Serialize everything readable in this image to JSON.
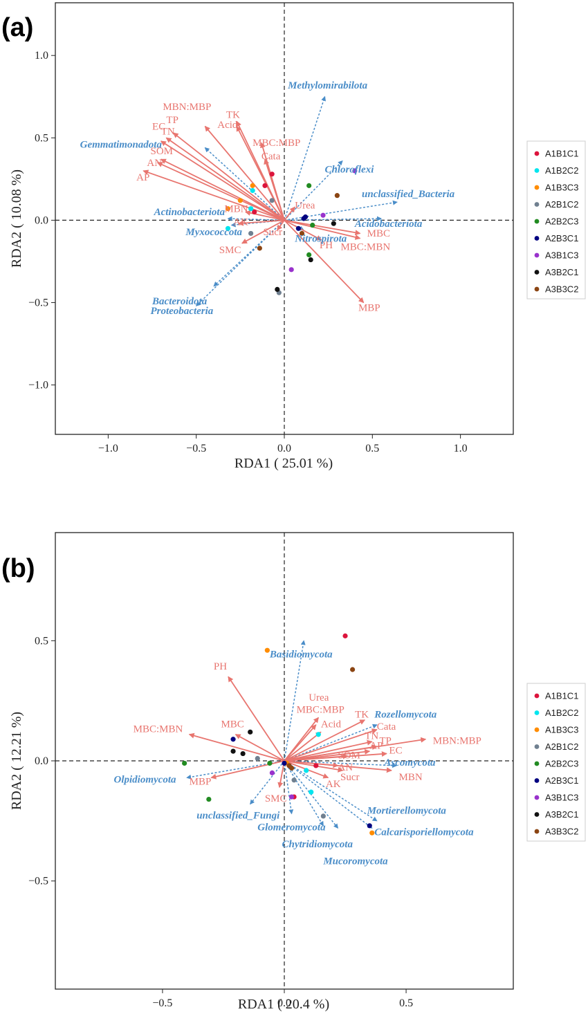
{
  "colors": {
    "env": "#e8756f",
    "taxa": "#4a8dc8",
    "axis": "#222222"
  },
  "chart_data": [
    {
      "panel": "(a)",
      "type": "scatter",
      "xlabel": "RDA1 ( 25.01 %)",
      "ylabel": "RDA2 ( 10.08 %)",
      "xlim": [
        -1.3,
        1.3
      ],
      "ylim": [
        -1.3,
        1.32
      ],
      "xticks": [
        -1.0,
        -0.5,
        0.0,
        0.5,
        1.0
      ],
      "xtick_labels": [
        "−1.0",
        "−0.5",
        "0.0",
        "0.5",
        "1.0"
      ],
      "yticks": [
        1.0,
        0.5,
        0.0,
        -0.5,
        -1.0
      ],
      "ytick_labels": [
        "1.0",
        "0.5",
        "0.0",
        "−0.5",
        "−1.0"
      ],
      "env_arrows": [
        {
          "name": "MBN:MBP",
          "x": -0.45,
          "y": 0.57,
          "lx": -0.69,
          "ly": 0.67
        },
        {
          "name": "TP",
          "x": -0.63,
          "y": 0.53,
          "lx": -0.67,
          "ly": 0.59
        },
        {
          "name": "EC",
          "x": -0.7,
          "y": 0.48,
          "lx": -0.75,
          "ly": 0.55
        },
        {
          "name": "TN",
          "x": -0.67,
          "y": 0.5,
          "lx": -0.7,
          "ly": 0.52
        },
        {
          "name": "Acid",
          "x": -0.27,
          "y": 0.57,
          "lx": -0.38,
          "ly": 0.56
        },
        {
          "name": "TK",
          "x": -0.27,
          "y": 0.6,
          "lx": -0.33,
          "ly": 0.62
        },
        {
          "name": "MBC:MBP",
          "x": -0.13,
          "y": 0.47,
          "lx": -0.18,
          "ly": 0.45
        },
        {
          "name": "Cata",
          "x": -0.11,
          "y": 0.37,
          "lx": -0.13,
          "ly": 0.37
        },
        {
          "name": "SOM",
          "x": -0.7,
          "y": 0.37,
          "lx": -0.76,
          "ly": 0.4
        },
        {
          "name": "AN",
          "x": -0.72,
          "y": 0.35,
          "lx": -0.78,
          "ly": 0.33
        },
        {
          "name": "AP",
          "x": -0.8,
          "y": 0.3,
          "lx": -0.84,
          "ly": 0.24
        },
        {
          "name": "MBN",
          "x": -0.22,
          "y": 0.05,
          "lx": -0.34,
          "ly": 0.05
        },
        {
          "name": "AK",
          "x": -0.26,
          "y": -0.02,
          "lx": -0.29,
          "ly": -0.03
        },
        {
          "name": "Urea",
          "x": 0.06,
          "y": 0.08,
          "lx": 0.06,
          "ly": 0.07
        },
        {
          "name": "Sucr",
          "x": -0.04,
          "y": -0.06,
          "lx": -0.12,
          "ly": -0.09
        },
        {
          "name": "SMC",
          "x": -0.24,
          "y": -0.14,
          "lx": -0.37,
          "ly": -0.2
        },
        {
          "name": "PH",
          "x": 0.21,
          "y": -0.12,
          "lx": 0.2,
          "ly": -0.17
        },
        {
          "name": "MBC",
          "x": 0.43,
          "y": -0.08,
          "lx": 0.47,
          "ly": -0.1
        },
        {
          "name": "MBC:MBN",
          "x": 0.43,
          "y": -0.11,
          "lx": 0.32,
          "ly": -0.18
        },
        {
          "name": "MBP",
          "x": 0.45,
          "y": -0.5,
          "lx": 0.42,
          "ly": -0.55
        }
      ],
      "taxa_arrows": [
        {
          "name": "Methylomirabilota",
          "x": 0.23,
          "y": 0.75,
          "lx": 0.02,
          "ly": 0.8
        },
        {
          "name": "Gemmatimonadota",
          "x": -0.45,
          "y": 0.44,
          "lx": -1.16,
          "ly": 0.44
        },
        {
          "name": "Chloroflexi",
          "x": 0.33,
          "y": 0.36,
          "lx": 0.23,
          "ly": 0.29
        },
        {
          "name": "unclassified_Bacteria",
          "x": 0.64,
          "y": 0.11,
          "lx": 0.44,
          "ly": 0.14
        },
        {
          "name": "Actinobacteriota",
          "x": -0.32,
          "y": 0.01,
          "lx": -0.74,
          "ly": 0.03
        },
        {
          "name": "Acidobacteriota",
          "x": 0.55,
          "y": 0.01,
          "lx": 0.4,
          "ly": -0.04
        },
        {
          "name": "Myxococcota",
          "x": -0.3,
          "y": -0.03,
          "lx": -0.56,
          "ly": -0.09
        },
        {
          "name": "Nitrospirota",
          "x": 0.11,
          "y": -0.06,
          "lx": 0.06,
          "ly": -0.13
        },
        {
          "name": "Bacteroidota",
          "x": -0.4,
          "y": -0.4,
          "lx": -0.75,
          "ly": -0.51
        },
        {
          "name": "Proteobacteria",
          "x": -0.5,
          "y": -0.52,
          "lx": -0.76,
          "ly": -0.57
        }
      ],
      "points": [
        {
          "group": "A1B1C1",
          "x": -0.11,
          "y": 0.21
        },
        {
          "group": "A1B1C1",
          "x": -0.07,
          "y": 0.28
        },
        {
          "group": "A1B1C1",
          "x": -0.17,
          "y": 0.05
        },
        {
          "group": "A1B2C2",
          "x": -0.18,
          "y": 0.18
        },
        {
          "group": "A1B2C2",
          "x": -0.19,
          "y": 0.07
        },
        {
          "group": "A1B2C2",
          "x": -0.32,
          "y": -0.05
        },
        {
          "group": "A1B3C3",
          "x": -0.18,
          "y": 0.21
        },
        {
          "group": "A1B3C3",
          "x": -0.25,
          "y": 0.12
        },
        {
          "group": "A1B3C3",
          "x": -0.32,
          "y": 0.07
        },
        {
          "group": "A2B1C2",
          "x": -0.07,
          "y": 0.12
        },
        {
          "group": "A2B1C2",
          "x": -0.03,
          "y": -0.44
        },
        {
          "group": "A2B1C2",
          "x": -0.19,
          "y": -0.08
        },
        {
          "group": "A2B2C3",
          "x": 0.14,
          "y": 0.21
        },
        {
          "group": "A2B2C3",
          "x": 0.16,
          "y": -0.03
        },
        {
          "group": "A2B2C3",
          "x": 0.14,
          "y": -0.21
        },
        {
          "group": "A2B3C1",
          "x": 0.12,
          "y": 0.02
        },
        {
          "group": "A2B3C1",
          "x": 0.08,
          "y": -0.05
        },
        {
          "group": "A2B3C1",
          "x": 0.11,
          "y": 0.01
        },
        {
          "group": "A3B1C3",
          "x": 0.4,
          "y": 0.3
        },
        {
          "group": "A3B1C3",
          "x": 0.22,
          "y": 0.03
        },
        {
          "group": "A3B1C3",
          "x": 0.04,
          "y": -0.3
        },
        {
          "group": "A3B2C1",
          "x": 0.28,
          "y": -0.02
        },
        {
          "group": "A3B2C1",
          "x": 0.15,
          "y": -0.24
        },
        {
          "group": "A3B2C1",
          "x": -0.04,
          "y": -0.42
        },
        {
          "group": "A3B3C2",
          "x": 0.3,
          "y": 0.15
        },
        {
          "group": "A3B3C2",
          "x": 0.1,
          "y": -0.08
        },
        {
          "group": "A3B3C2",
          "x": -0.14,
          "y": -0.17
        }
      ],
      "legend": [
        {
          "label": "A1B1C1",
          "color": "#dc143c"
        },
        {
          "label": "A1B2C2",
          "color": "#00e5ee"
        },
        {
          "label": "A1B3C3",
          "color": "#ff8c00"
        },
        {
          "label": "A2B1C2",
          "color": "#708090"
        },
        {
          "label": "A2B2C3",
          "color": "#228b22"
        },
        {
          "label": "A2B3C1",
          "color": "#000080"
        },
        {
          "label": "A3B1C3",
          "color": "#9932cc"
        },
        {
          "label": "A3B2C1",
          "color": "#111111"
        },
        {
          "label": "A3B3C2",
          "color": "#8b4513"
        }
      ]
    },
    {
      "panel": "(b)",
      "type": "scatter",
      "xlabel": "RDA1 ( 20.4 %)",
      "ylabel": "RDA2 ( 12.21 %)",
      "xlim": [
        -0.94,
        0.94
      ],
      "ylim": [
        -0.95,
        0.95
      ],
      "xticks": [
        -0.5,
        0.0,
        0.5
      ],
      "xtick_labels": [
        "−0.5",
        "0.0",
        "0.5"
      ],
      "yticks": [
        0.5,
        0.0,
        -0.5
      ],
      "ytick_labels": [
        "0.5",
        "0.0",
        "−0.5"
      ],
      "env_arrows": [
        {
          "name": "PH",
          "x": -0.23,
          "y": 0.35,
          "lx": -0.29,
          "ly": 0.38
        },
        {
          "name": "Urea",
          "x": 0.14,
          "y": 0.18,
          "lx": 0.1,
          "ly": 0.25
        },
        {
          "name": "MBC:MBP",
          "x": 0.13,
          "y": 0.15,
          "lx": 0.05,
          "ly": 0.2
        },
        {
          "name": "Acid",
          "x": 0.15,
          "y": 0.12,
          "lx": 0.15,
          "ly": 0.14
        },
        {
          "name": "TK",
          "x": 0.33,
          "y": 0.17,
          "lx": 0.29,
          "ly": 0.18
        },
        {
          "name": "Cata",
          "x": 0.38,
          "y": 0.13,
          "lx": 0.38,
          "ly": 0.13
        },
        {
          "name": "TN",
          "x": 0.36,
          "y": 0.08,
          "lx": 0.33,
          "ly": 0.09
        },
        {
          "name": "TP",
          "x": 0.38,
          "y": 0.06,
          "lx": 0.39,
          "ly": 0.07
        },
        {
          "name": "AP",
          "x": 0.35,
          "y": 0.04,
          "lx": 0.35,
          "ly": 0.05
        },
        {
          "name": "EC",
          "x": 0.42,
          "y": 0.03,
          "lx": 0.43,
          "ly": 0.03
        },
        {
          "name": "SOM",
          "x": 0.26,
          "y": 0.02,
          "lx": 0.22,
          "ly": 0.01
        },
        {
          "name": "MBN:MBP",
          "x": 0.58,
          "y": 0.09,
          "lx": 0.61,
          "ly": 0.07
        },
        {
          "name": "MBN",
          "x": 0.44,
          "y": -0.04,
          "lx": 0.47,
          "ly": -0.08
        },
        {
          "name": "AN",
          "x": 0.22,
          "y": -0.02,
          "lx": 0.22,
          "ly": -0.04
        },
        {
          "name": "Sucr",
          "x": 0.24,
          "y": -0.04,
          "lx": 0.23,
          "ly": -0.08
        },
        {
          "name": "AK",
          "x": 0.18,
          "y": -0.07,
          "lx": 0.17,
          "ly": -0.11
        },
        {
          "name": "SMC",
          "x": -0.02,
          "y": -0.11,
          "lx": -0.08,
          "ly": -0.17
        },
        {
          "name": "MBC",
          "x": -0.2,
          "y": 0.11,
          "lx": -0.26,
          "ly": 0.14
        },
        {
          "name": "MBC:MBN",
          "x": -0.39,
          "y": 0.11,
          "lx": -0.62,
          "ly": 0.12
        },
        {
          "name": "MBP",
          "x": -0.3,
          "y": -0.07,
          "lx": -0.39,
          "ly": -0.1
        }
      ],
      "taxa_arrows": [
        {
          "name": "Basidiomycota",
          "x": 0.08,
          "y": 0.5,
          "lx": -0.06,
          "ly": 0.43
        },
        {
          "name": "Rozellomycota",
          "x": 0.38,
          "y": 0.15,
          "lx": 0.37,
          "ly": 0.18
        },
        {
          "name": "Ascomycota",
          "x": 0.46,
          "y": -0.02,
          "lx": 0.41,
          "ly": -0.02
        },
        {
          "name": "Olpidiomycota",
          "x": -0.4,
          "y": -0.07,
          "lx": -0.7,
          "ly": -0.09
        },
        {
          "name": "unclassified_Fungi",
          "x": -0.14,
          "y": -0.18,
          "lx": -0.36,
          "ly": -0.24
        },
        {
          "name": "Glomeromycota",
          "x": 0.03,
          "y": -0.22,
          "lx": -0.11,
          "ly": -0.29
        },
        {
          "name": "Chytridiomycota",
          "x": 0.16,
          "y": -0.27,
          "lx": -0.01,
          "ly": -0.36
        },
        {
          "name": "Mucoromycota",
          "x": 0.22,
          "y": -0.28,
          "lx": 0.16,
          "ly": -0.43
        },
        {
          "name": "Mortierellomycota",
          "x": 0.38,
          "y": -0.25,
          "lx": 0.34,
          "ly": -0.22
        },
        {
          "name": "Calcarisporiellomycota",
          "x": 0.36,
          "y": -0.28,
          "lx": 0.37,
          "ly": -0.31
        }
      ],
      "points": [
        {
          "group": "A1B1C1",
          "x": 0.25,
          "y": 0.52
        },
        {
          "group": "A1B1C1",
          "x": 0.13,
          "y": -0.02
        },
        {
          "group": "A1B1C1",
          "x": 0.04,
          "y": -0.15
        },
        {
          "group": "A1B2C2",
          "x": 0.14,
          "y": 0.11
        },
        {
          "group": "A1B2C2",
          "x": 0.09,
          "y": -0.04
        },
        {
          "group": "A1B2C2",
          "x": 0.11,
          "y": -0.13
        },
        {
          "group": "A1B3C3",
          "x": -0.07,
          "y": 0.46
        },
        {
          "group": "A1B3C3",
          "x": 0.01,
          "y": -0.01
        },
        {
          "group": "A1B3C3",
          "x": 0.36,
          "y": -0.3
        },
        {
          "group": "A2B1C2",
          "x": -0.11,
          "y": 0.01
        },
        {
          "group": "A2B1C2",
          "x": 0.04,
          "y": -0.08
        },
        {
          "group": "A2B1C2",
          "x": 0.16,
          "y": -0.23
        },
        {
          "group": "A2B2C3",
          "x": -0.41,
          "y": -0.01
        },
        {
          "group": "A2B2C3",
          "x": -0.31,
          "y": -0.16
        },
        {
          "group": "A2B2C3",
          "x": -0.06,
          "y": -0.01
        },
        {
          "group": "A2B3C1",
          "x": -0.21,
          "y": 0.09
        },
        {
          "group": "A2B3C1",
          "x": 0.35,
          "y": -0.27
        },
        {
          "group": "A2B3C1",
          "x": 0.0,
          "y": -0.01
        },
        {
          "group": "A3B1C3",
          "x": -0.05,
          "y": -0.05
        },
        {
          "group": "A3B1C3",
          "x": 0.03,
          "y": -0.15
        },
        {
          "group": "A3B1C3",
          "x": 0.02,
          "y": -0.02
        },
        {
          "group": "A3B2C1",
          "x": -0.14,
          "y": 0.12
        },
        {
          "group": "A3B2C1",
          "x": -0.21,
          "y": 0.04
        },
        {
          "group": "A3B2C1",
          "x": -0.17,
          "y": 0.03
        },
        {
          "group": "A3B3C2",
          "x": 0.28,
          "y": 0.38
        },
        {
          "group": "A3B3C2",
          "x": 0.02,
          "y": -0.02
        },
        {
          "group": "A3B3C2",
          "x": 0.03,
          "y": -0.03
        }
      ],
      "legend": [
        {
          "label": "A1B1C1",
          "color": "#dc143c"
        },
        {
          "label": "A1B2C2",
          "color": "#00e5ee"
        },
        {
          "label": "A1B3C3",
          "color": "#ff8c00"
        },
        {
          "label": "A2B1C2",
          "color": "#708090"
        },
        {
          "label": "A2B2C3",
          "color": "#228b22"
        },
        {
          "label": "A2B3C1",
          "color": "#000080"
        },
        {
          "label": "A3B1C3",
          "color": "#9932cc"
        },
        {
          "label": "A3B2C1",
          "color": "#111111"
        },
        {
          "label": "A3B3C2",
          "color": "#8b4513"
        }
      ]
    }
  ]
}
